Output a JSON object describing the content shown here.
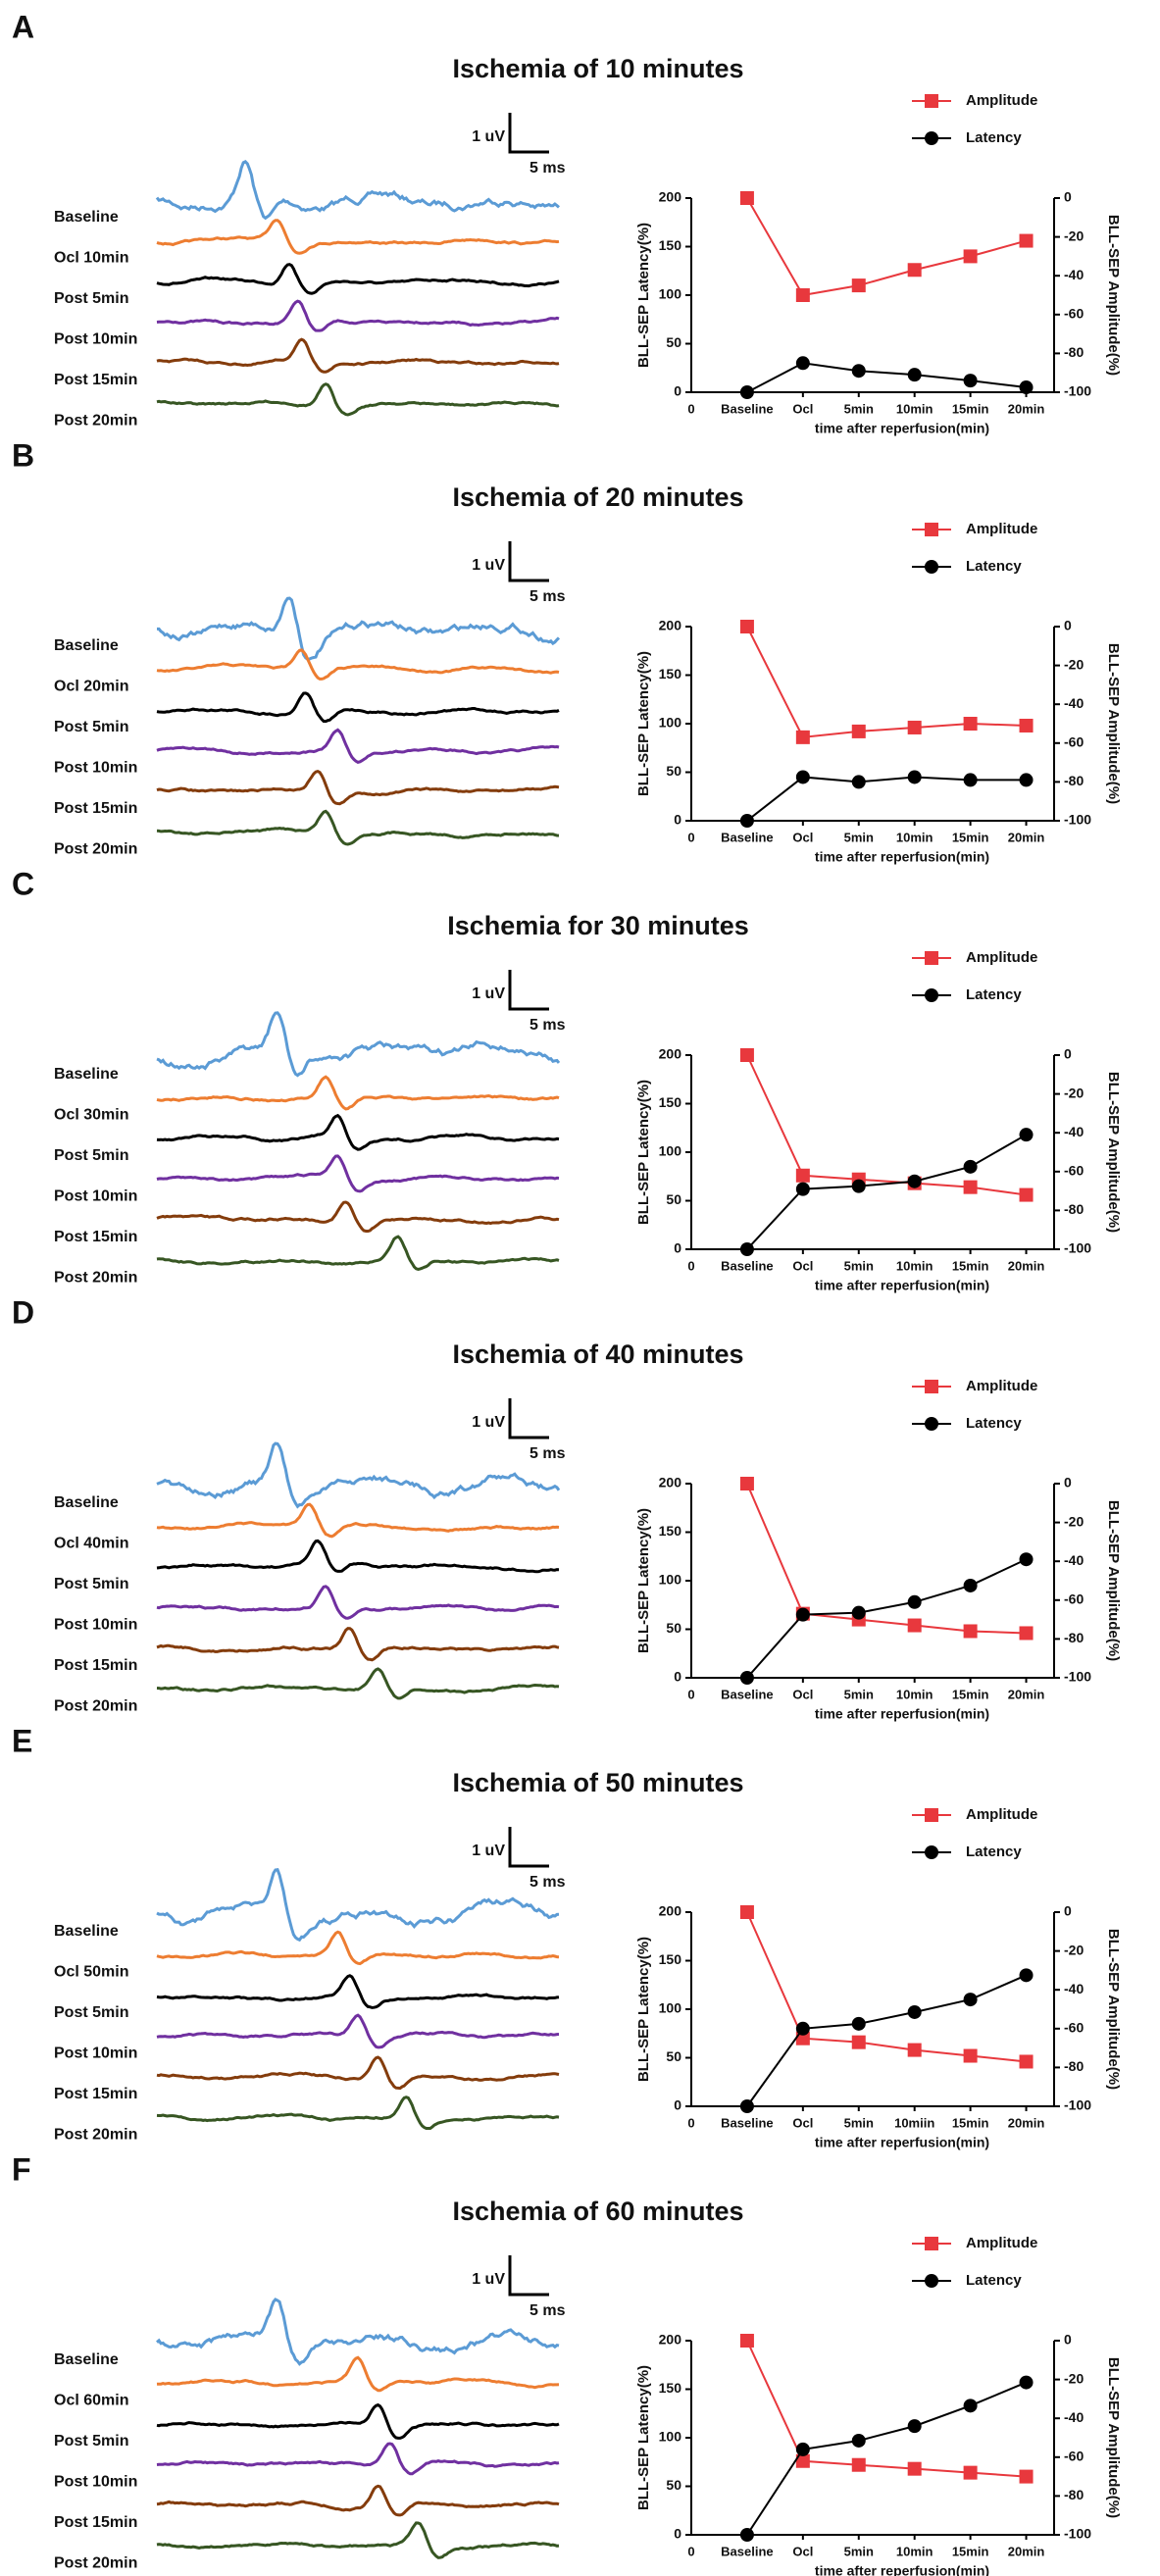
{
  "chart_data": [
    {
      "type": "line",
      "letter": "A",
      "title": "Ischemia of 10 minutes",
      "trace_labels": [
        "Baseline",
        "Ocl 10min",
        "Post 5min",
        "Post 10min",
        "Post 15min",
        "Post 20min"
      ],
      "scale_labels": [
        "1 uV",
        "5 ms"
      ],
      "categories": [
        "Baseline",
        "Ocl",
        "5min",
        "10min",
        "15min",
        "20min"
      ],
      "x_origin": "0",
      "xlabel": "time after reperfusion(min)",
      "ylabel": "BLL-SEP Latency(%)",
      "y2label": "BLL-SEP Amplitude(%)",
      "ylim": [
        0,
        200
      ],
      "yticks": [
        0,
        50,
        100,
        150,
        200
      ],
      "y2lim": [
        -100,
        0
      ],
      "y2ticks": [
        -100,
        -80,
        -60,
        -40,
        -20,
        0
      ],
      "series": [
        {
          "name": "Amplitude",
          "color": "#e8383d",
          "axis": "y2",
          "marker": "square",
          "values": [
            0,
            -50,
            -45,
            -37,
            -30,
            -22
          ]
        },
        {
          "name": "Latency",
          "color": "#000000",
          "marker": "circle",
          "values": [
            0,
            30,
            22,
            18,
            12,
            5
          ]
        }
      ]
    },
    {
      "type": "line",
      "letter": "B",
      "title": "Ischemia of 20 minutes",
      "trace_labels": [
        "Baseline",
        "Ocl 20min",
        "Post 5min",
        "Post 10min",
        "Post 15min",
        "Post 20min"
      ],
      "scale_labels": [
        "1 uV",
        "5 ms"
      ],
      "categories": [
        "Baseline",
        "Ocl",
        "5min",
        "10min",
        "15min",
        "20min"
      ],
      "x_origin": "0",
      "xlabel": "time after reperfusion(min)",
      "ylabel": "BLL-SEP Latency(%)",
      "y2label": "BLL-SEP Amplitude(%)",
      "ylim": [
        0,
        200
      ],
      "yticks": [
        0,
        50,
        100,
        150,
        200
      ],
      "y2lim": [
        -100,
        0
      ],
      "y2ticks": [
        -100,
        -80,
        -60,
        -40,
        -20,
        0
      ],
      "series": [
        {
          "name": "Amplitude",
          "color": "#e8383d",
          "axis": "y2",
          "marker": "square",
          "values": [
            0,
            -57,
            -54,
            -52,
            -50,
            -51
          ]
        },
        {
          "name": "Latency",
          "color": "#000000",
          "marker": "circle",
          "values": [
            0,
            45,
            40,
            45,
            42,
            42
          ]
        }
      ]
    },
    {
      "type": "line",
      "letter": "C",
      "title": "Ischemia for 30 minutes",
      "trace_labels": [
        "Baseline",
        "Ocl 30min",
        "Post 5min",
        "Post 10min",
        "Post 15min",
        "Post 20min"
      ],
      "scale_labels": [
        "1 uV",
        "5 ms"
      ],
      "categories": [
        "Baseline",
        "Ocl",
        "5min",
        "10min",
        "15min",
        "20min"
      ],
      "x_origin": "0",
      "xlabel": "time after reperfusion(min)",
      "ylabel": "BLL-SEP Latency(%)",
      "y2label": "BLL-SEP Amplitude(%)",
      "ylim": [
        0,
        200
      ],
      "yticks": [
        0,
        50,
        100,
        150,
        200
      ],
      "y2lim": [
        -100,
        0
      ],
      "y2ticks": [
        -100,
        -80,
        -60,
        -40,
        -20,
        0
      ],
      "series": [
        {
          "name": "Amplitude",
          "color": "#e8383d",
          "axis": "y2",
          "marker": "square",
          "values": [
            0,
            -62,
            -64,
            -66,
            -68,
            -72
          ]
        },
        {
          "name": "Latency",
          "color": "#000000",
          "marker": "circle",
          "values": [
            0,
            62,
            65,
            70,
            85,
            118
          ]
        }
      ]
    },
    {
      "type": "line",
      "letter": "D",
      "title": "Ischemia of 40 minutes",
      "trace_labels": [
        "Baseline",
        "Ocl 40min",
        "Post 5min",
        "Post 10min",
        "Post 15min",
        "Post 20min"
      ],
      "scale_labels": [
        "1 uV",
        "5 ms"
      ],
      "categories": [
        "Baseline",
        "Ocl",
        "5min",
        "10min",
        "15min",
        "20min"
      ],
      "x_origin": "0",
      "xlabel": "time after reperfusion(min)",
      "ylabel": "BLL-SEP Latency(%)",
      "y2label": "BLL-SEP Amplitude(%)",
      "ylim": [
        0,
        200
      ],
      "yticks": [
        0,
        50,
        100,
        150,
        200
      ],
      "y2lim": [
        -100,
        0
      ],
      "y2ticks": [
        -100,
        -80,
        -60,
        -40,
        -20,
        0
      ],
      "series": [
        {
          "name": "Amplitude",
          "color": "#e8383d",
          "axis": "y2",
          "marker": "square",
          "values": [
            0,
            -67,
            -70,
            -73,
            -76,
            -77
          ]
        },
        {
          "name": "Latency",
          "color": "#000000",
          "marker": "circle",
          "values": [
            0,
            65,
            67,
            78,
            95,
            122
          ]
        }
      ]
    },
    {
      "type": "line",
      "letter": "E",
      "title": "Ischemia of 50 minutes",
      "trace_labels": [
        "Baseline",
        "Ocl 50min",
        "Post 5min",
        "Post 10min",
        "Post 15min",
        "Post 20min"
      ],
      "scale_labels": [
        "1 uV",
        "5 ms"
      ],
      "categories": [
        "Baseline",
        "Ocl",
        "5min",
        "10miin",
        "15min",
        "20min"
      ],
      "x_origin": "0",
      "xlabel": "time after reperfusion(min)",
      "ylabel": "BLL-SEP Latency(%)",
      "y2label": "BLL-SEP Amplitude(%)",
      "ylim": [
        0,
        200
      ],
      "yticks": [
        0,
        50,
        100,
        150,
        200
      ],
      "y2lim": [
        -100,
        0
      ],
      "y2ticks": [
        -100,
        -80,
        -60,
        -40,
        -20,
        0
      ],
      "series": [
        {
          "name": "Amplitude",
          "color": "#e8383d",
          "axis": "y2",
          "marker": "square",
          "values": [
            0,
            -65,
            -67,
            -71,
            -74,
            -77
          ]
        },
        {
          "name": "Latency",
          "color": "#000000",
          "marker": "circle",
          "values": [
            0,
            80,
            85,
            97,
            110,
            135
          ]
        }
      ]
    },
    {
      "type": "line",
      "letter": "F",
      "title": "Ischemia of 60 minutes",
      "trace_labels": [
        "Baseline",
        "Ocl 60min",
        "Post 5min",
        "Post 10min",
        "Post 15min",
        "Post 20min"
      ],
      "scale_labels": [
        "1 uV",
        "5 ms"
      ],
      "categories": [
        "Baseline",
        "Ocl",
        "5min",
        "10min",
        "15min",
        "20min"
      ],
      "x_origin": "0",
      "xlabel": "time after reperfusion(min)",
      "ylabel": "BLL-SEP Latency(%)",
      "y2label": "BLL-SEP Amplitude(%)",
      "ylim": [
        0,
        200
      ],
      "yticks": [
        0,
        50,
        100,
        150,
        200
      ],
      "y2lim": [
        -100,
        0
      ],
      "y2ticks": [
        -100,
        -80,
        -60,
        -40,
        -20,
        0
      ],
      "series": [
        {
          "name": "Amplitude",
          "color": "#e8383d",
          "axis": "y2",
          "marker": "square",
          "values": [
            0,
            -62,
            -64,
            -66,
            -68,
            -70
          ]
        },
        {
          "name": "Latency",
          "color": "#000000",
          "marker": "circle",
          "values": [
            0,
            88,
            97,
            112,
            133,
            157
          ]
        }
      ]
    }
  ]
}
